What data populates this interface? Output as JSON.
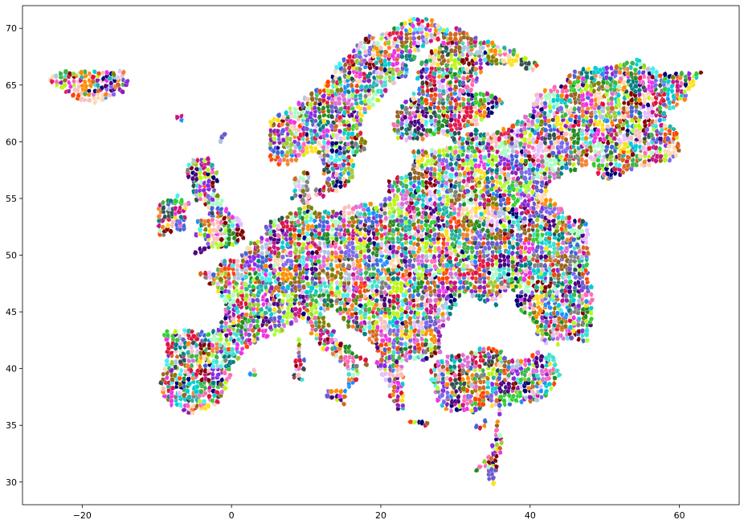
{
  "chart_data": {
    "type": "map",
    "title": "",
    "xlabel": "",
    "ylabel": "",
    "xlim": [
      -28,
      68
    ],
    "ylim": [
      28,
      72
    ],
    "x_ticks": [
      -20,
      0,
      20,
      40,
      60
    ],
    "y_ticks": [
      30,
      35,
      40,
      45,
      50,
      55,
      60,
      65,
      70
    ],
    "x_tick_labels": [
      "−20",
      "0",
      "20",
      "40",
      "60"
    ],
    "y_tick_labels": [
      "30",
      "35",
      "40",
      "45",
      "50",
      "55",
      "60",
      "65",
      "70"
    ],
    "grid": false,
    "legend": "none",
    "content": "Europe divided into many small river-basin / administrative sub-regions, each filled with a random distinct colour",
    "palette": [
      "#e6194b",
      "#3cb44b",
      "#ffe119",
      "#4363d8",
      "#f58231",
      "#911eb4",
      "#46f0f0",
      "#f032e6",
      "#bcf60c",
      "#fabebe",
      "#008080",
      "#e6beff",
      "#9a6324",
      "#800000",
      "#aaffc3",
      "#808000",
      "#ffd8b1",
      "#000075",
      "#808080",
      "#2f4f4f",
      "#7b68ee",
      "#ff69b4",
      "#20b2aa",
      "#adff2f",
      "#dc143c",
      "#1e90ff",
      "#ff8c00",
      "#9acd32",
      "#8a2be2",
      "#00ced1",
      "#c71585",
      "#b0c4de",
      "#32cd32",
      "#ff4500",
      "#6a5acd",
      "#40e0d0",
      "#d2691e",
      "#da70d6",
      "#228b22",
      "#4b0082"
    ]
  }
}
